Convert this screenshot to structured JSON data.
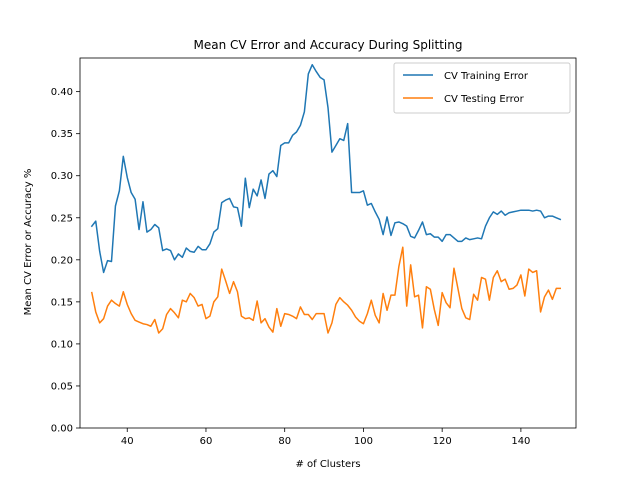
{
  "chart_data": {
    "type": "line",
    "title": "Mean CV Error and Accuracy During Splitting",
    "xlabel": "# of Clusters",
    "ylabel": "Mean CV Error or Accuracy %",
    "xlim": [
      28,
      154
    ],
    "ylim": [
      0.0,
      0.44
    ],
    "xticks": [
      40,
      60,
      80,
      100,
      120,
      140
    ],
    "yticks": [
      0.0,
      0.05,
      0.1,
      0.15,
      0.2,
      0.25,
      0.3,
      0.35,
      0.4
    ],
    "grid": false,
    "legend": "top-right",
    "x": [
      31,
      32,
      33,
      34,
      35,
      36,
      37,
      38,
      39,
      40,
      41,
      42,
      43,
      44,
      45,
      46,
      47,
      48,
      49,
      50,
      51,
      52,
      53,
      54,
      55,
      56,
      57,
      58,
      59,
      60,
      61,
      62,
      63,
      64,
      65,
      66,
      67,
      68,
      69,
      70,
      71,
      72,
      73,
      74,
      75,
      76,
      77,
      78,
      79,
      80,
      81,
      82,
      83,
      84,
      85,
      86,
      87,
      88,
      89,
      90,
      91,
      92,
      93,
      94,
      95,
      96,
      97,
      98,
      99,
      100,
      101,
      102,
      103,
      104,
      105,
      106,
      107,
      108,
      109,
      110,
      111,
      112,
      113,
      114,
      115,
      116,
      117,
      118,
      119,
      120,
      121,
      122,
      123,
      124,
      125,
      126,
      127,
      128,
      129,
      130,
      131,
      132,
      133,
      134,
      135,
      136,
      137,
      138,
      139,
      140,
      141,
      142,
      143,
      144,
      145,
      146,
      147,
      148,
      149,
      150
    ],
    "series": [
      {
        "name": "CV Training Error",
        "color": "#1f77b4",
        "values": [
          0.24,
          0.246,
          0.21,
          0.185,
          0.199,
          0.198,
          0.264,
          0.282,
          0.323,
          0.298,
          0.28,
          0.272,
          0.236,
          0.269,
          0.233,
          0.236,
          0.242,
          0.238,
          0.211,
          0.213,
          0.211,
          0.2,
          0.207,
          0.203,
          0.214,
          0.21,
          0.209,
          0.216,
          0.212,
          0.212,
          0.219,
          0.233,
          0.237,
          0.268,
          0.271,
          0.273,
          0.263,
          0.262,
          0.24,
          0.297,
          0.262,
          0.284,
          0.276,
          0.295,
          0.273,
          0.302,
          0.306,
          0.299,
          0.336,
          0.339,
          0.339,
          0.348,
          0.352,
          0.36,
          0.376,
          0.421,
          0.432,
          0.424,
          0.417,
          0.414,
          0.381,
          0.328,
          0.336,
          0.344,
          0.342,
          0.362,
          0.28,
          0.28,
          0.28,
          0.282,
          0.265,
          0.267,
          0.257,
          0.248,
          0.23,
          0.251,
          0.229,
          0.244,
          0.245,
          0.243,
          0.24,
          0.228,
          0.226,
          0.235,
          0.245,
          0.23,
          0.231,
          0.227,
          0.227,
          0.222,
          0.23,
          0.23,
          0.226,
          0.222,
          0.222,
          0.226,
          0.224,
          0.225,
          0.226,
          0.225,
          0.24,
          0.25,
          0.257,
          0.254,
          0.258,
          0.253,
          0.256,
          0.257,
          0.258,
          0.259,
          0.259,
          0.259,
          0.258,
          0.259,
          0.258,
          0.25,
          0.252,
          0.252,
          0.25,
          0.248
        ]
      },
      {
        "name": "CV Testing Error",
        "color": "#ff7f0e",
        "values": [
          0.161,
          0.138,
          0.125,
          0.13,
          0.145,
          0.152,
          0.148,
          0.145,
          0.162,
          0.147,
          0.136,
          0.128,
          0.126,
          0.124,
          0.123,
          0.121,
          0.129,
          0.113,
          0.118,
          0.135,
          0.142,
          0.137,
          0.131,
          0.152,
          0.15,
          0.16,
          0.155,
          0.145,
          0.147,
          0.13,
          0.133,
          0.15,
          0.156,
          0.189,
          0.175,
          0.16,
          0.174,
          0.162,
          0.133,
          0.13,
          0.131,
          0.128,
          0.151,
          0.125,
          0.13,
          0.12,
          0.114,
          0.142,
          0.121,
          0.136,
          0.135,
          0.133,
          0.13,
          0.144,
          0.135,
          0.135,
          0.129,
          0.136,
          0.136,
          0.136,
          0.113,
          0.125,
          0.147,
          0.155,
          0.15,
          0.146,
          0.14,
          0.132,
          0.127,
          0.124,
          0.136,
          0.152,
          0.134,
          0.125,
          0.16,
          0.14,
          0.158,
          0.158,
          0.192,
          0.215,
          0.145,
          0.194,
          0.156,
          0.158,
          0.119,
          0.168,
          0.165,
          0.141,
          0.122,
          0.161,
          0.149,
          0.143,
          0.19,
          0.166,
          0.142,
          0.131,
          0.129,
          0.159,
          0.152,
          0.179,
          0.177,
          0.152,
          0.179,
          0.187,
          0.174,
          0.177,
          0.165,
          0.166,
          0.17,
          0.182,
          0.157,
          0.189,
          0.185,
          0.187,
          0.138,
          0.156,
          0.164,
          0.153,
          0.166,
          0.166
        ]
      }
    ]
  }
}
